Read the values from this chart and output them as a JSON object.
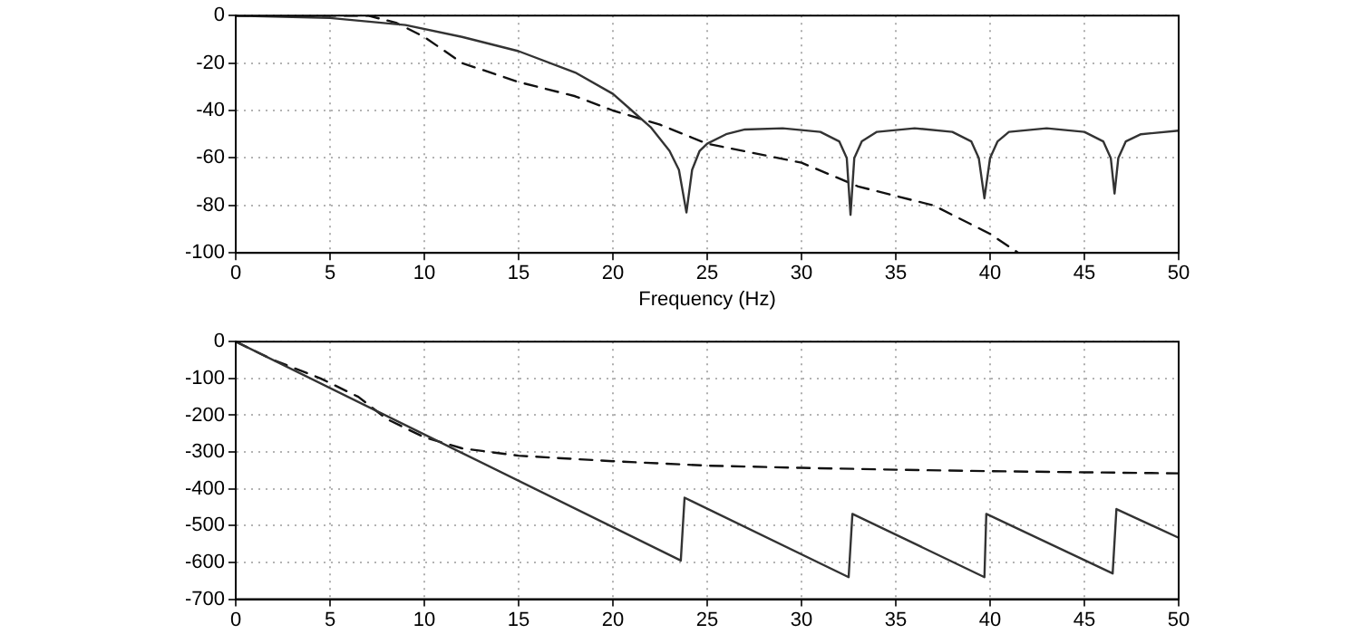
{
  "chart_data": [
    {
      "type": "line",
      "xlabel": "Frequency (Hz)",
      "xlim": [
        0,
        50
      ],
      "xticks": [
        0,
        5,
        10,
        15,
        20,
        25,
        30,
        35,
        40,
        45,
        50
      ],
      "ylim": [
        -100,
        0
      ],
      "yticks": [
        -100,
        -80,
        -60,
        -40,
        -20,
        0
      ],
      "grid": true,
      "marker": "none",
      "series": [
        {
          "color": "#333333",
          "line_style": "solid",
          "x": [
            0,
            5,
            9,
            12,
            15,
            18,
            20,
            21,
            22,
            23,
            23.5,
            23.9,
            24.2,
            24.6,
            25,
            26,
            27,
            29,
            31,
            32,
            32.4,
            32.6,
            32.8,
            33.2,
            34,
            36,
            38,
            39,
            39.4,
            39.7,
            40,
            40.4,
            41,
            43,
            45,
            46,
            46.4,
            46.6,
            46.8,
            47.2,
            48,
            50
          ],
          "values": [
            0,
            -1,
            -4,
            -9,
            -15,
            -24,
            -33,
            -40,
            -47,
            -57,
            -65,
            -83,
            -65,
            -57,
            -54,
            -50,
            -48,
            -47.5,
            -49,
            -53,
            -60,
            -84,
            -60,
            -53,
            -49,
            -47.5,
            -49,
            -53,
            -60,
            -77,
            -60,
            -53,
            -49,
            -47.5,
            -49,
            -53,
            -60,
            -75,
            -60,
            -53,
            -50,
            -48.5
          ]
        },
        {
          "color": "#111111",
          "line_style": "dashed",
          "x": [
            0,
            7,
            8.5,
            10,
            12,
            15,
            18,
            20,
            22.5,
            25,
            30,
            33,
            37,
            40,
            41.5
          ],
          "values": [
            0,
            0,
            -3,
            -9,
            -20,
            -28,
            -34,
            -40,
            -46,
            -54,
            -62,
            -72,
            -80,
            -92,
            -100
          ]
        }
      ]
    },
    {
      "type": "line",
      "xlim": [
        0,
        50
      ],
      "xticks": [
        0,
        5,
        10,
        15,
        20,
        25,
        30,
        35,
        40,
        45,
        50
      ],
      "ylim": [
        -700,
        0
      ],
      "yticks": [
        -700,
        -600,
        -500,
        -400,
        -300,
        -200,
        -100,
        0
      ],
      "grid": true,
      "marker": "none",
      "series": [
        {
          "color": "#333333",
          "line_style": "solid",
          "x": [
            0,
            23.6,
            23.8,
            32.5,
            32.7,
            39.7,
            39.8,
            46.5,
            46.7,
            50
          ],
          "values": [
            0,
            -595,
            -424,
            -640,
            -468,
            -640,
            -468,
            -630,
            -455,
            -533
          ]
        },
        {
          "color": "#111111",
          "line_style": "dashed",
          "x": [
            0,
            2,
            4.5,
            6.5,
            8,
            10,
            12,
            15,
            20,
            25,
            30,
            35,
            40,
            45,
            50
          ],
          "values": [
            0,
            -50,
            -100,
            -150,
            -210,
            -260,
            -290,
            -310,
            -325,
            -337,
            -343,
            -348,
            -352,
            -355,
            -358
          ]
        }
      ]
    }
  ]
}
